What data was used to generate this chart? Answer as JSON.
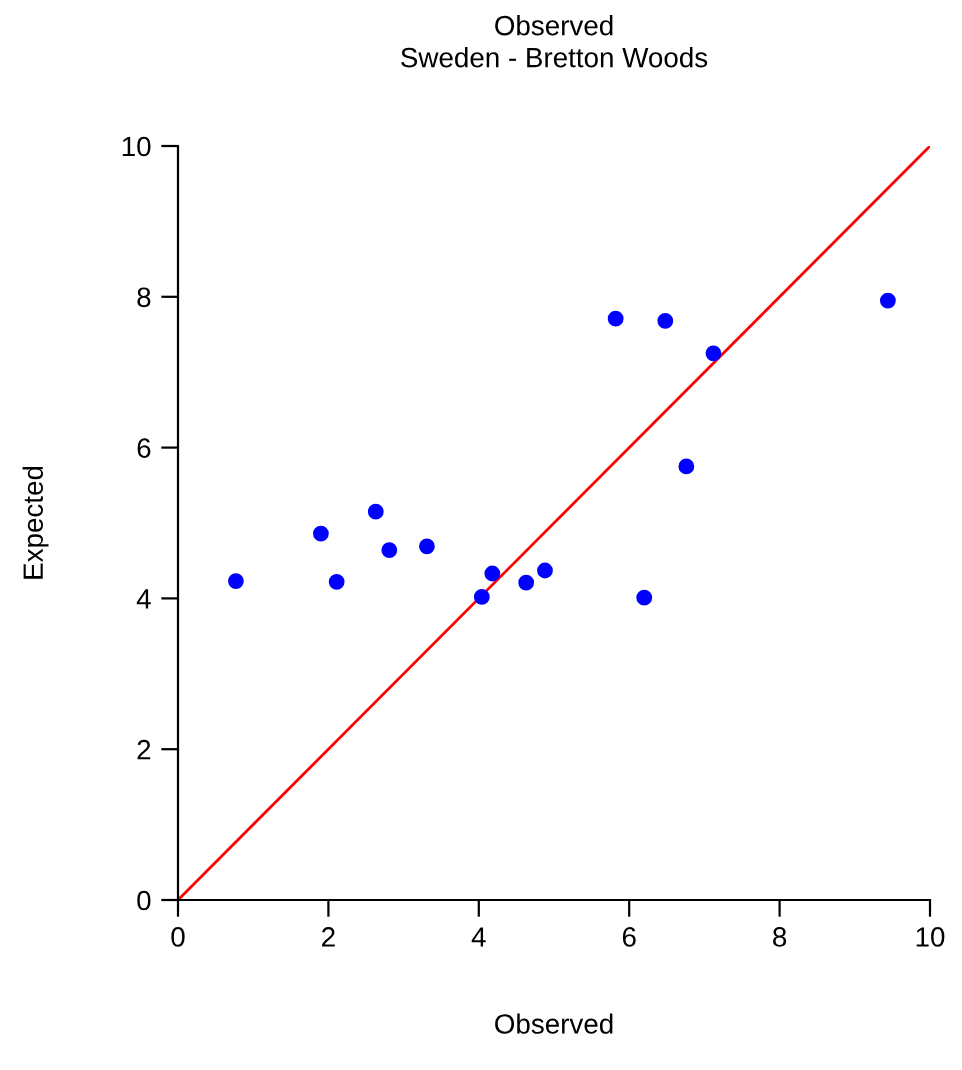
{
  "chart_data": {
    "type": "scatter",
    "title": "Observed",
    "subtitle": "Sweden - Bretton Woods",
    "xlabel": "Observed",
    "ylabel": "Expected",
    "xlim": [
      0,
      10
    ],
    "ylim": [
      0,
      10
    ],
    "xticks": [
      0,
      2,
      4,
      6,
      8,
      10
    ],
    "yticks": [
      0,
      2,
      4,
      6,
      8,
      10
    ],
    "grid": false,
    "legend": false,
    "marker": "circle",
    "series": [
      {
        "color": "#0000ff",
        "x": [
          0.77,
          1.9,
          2.11,
          2.63,
          2.81,
          3.31,
          4.04,
          4.18,
          4.63,
          4.88,
          5.82,
          6.48,
          7.12,
          6.76,
          6.2,
          9.44
        ],
        "values": [
          4.23,
          4.86,
          4.22,
          5.15,
          4.64,
          4.69,
          4.02,
          4.33,
          4.21,
          4.37,
          7.71,
          7.68,
          7.25,
          5.75,
          4.01,
          7.95
        ]
      },
      {
        "type": "line",
        "color": "#ff0000",
        "x": [
          0,
          10
        ],
        "values": [
          0,
          10
        ],
        "marker": "none",
        "line_style": "solid"
      }
    ]
  }
}
